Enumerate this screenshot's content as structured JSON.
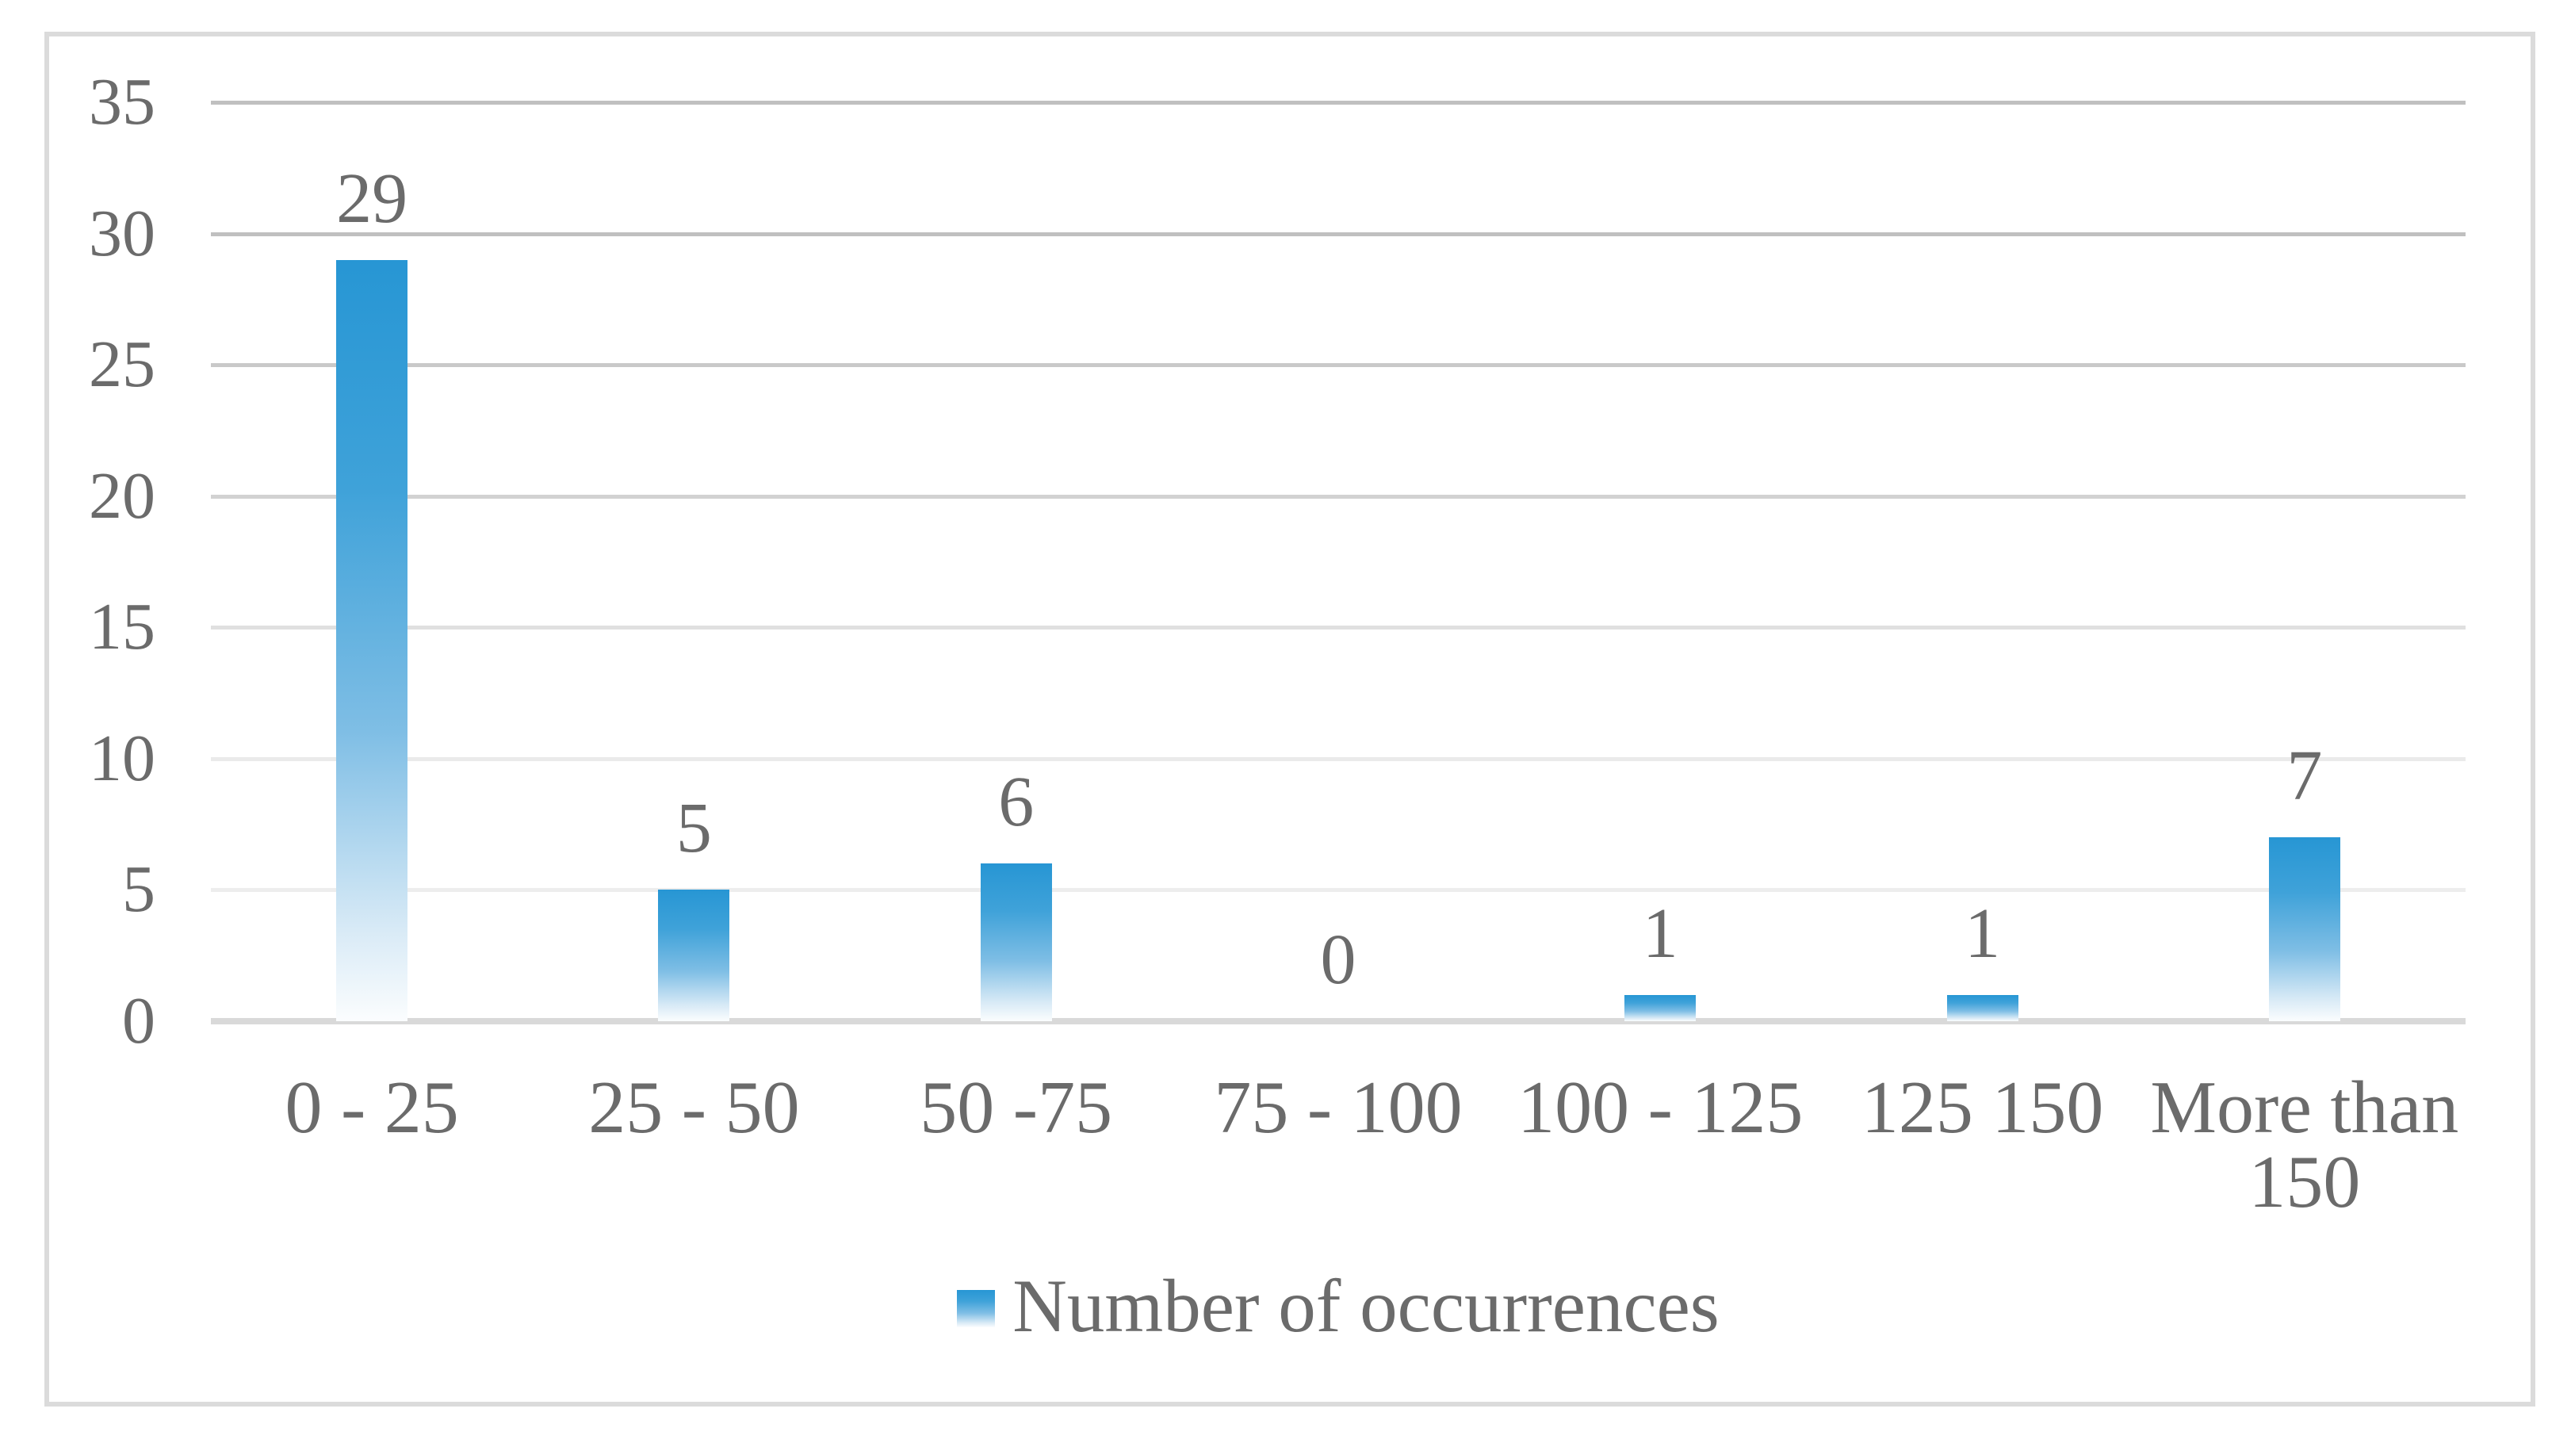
{
  "chart_data": {
    "type": "bar",
    "title": "",
    "series_name": "Number of occurrences",
    "categories": [
      "0 - 25",
      "25 - 50",
      "50 -75",
      "75 - 100",
      "100 - 125",
      "125 150",
      "More than 150"
    ],
    "values": [
      29,
      5,
      6,
      0,
      1,
      1,
      7
    ],
    "data_labels": [
      "29",
      "5",
      "6",
      "0",
      "1",
      "1",
      "7"
    ],
    "xlabel": "",
    "ylabel": "",
    "ylim": [
      0,
      35
    ],
    "ytick_step": 5,
    "ytick_labels_top_to_bottom": [
      "35",
      "30",
      "25",
      "20",
      "15",
      "10",
      "5",
      "0"
    ],
    "grid": true,
    "legend_position": "bottom",
    "colors": {
      "bar_gradient_top": "#2796d4",
      "bar_gradient_mid1": "#3fa2d9",
      "bar_gradient_mid2": "#7fbee5",
      "bar_gradient_mid3": "#d8eaf6",
      "bar_gradient_bottom": "#fbfdfe",
      "text": "#6b6b6b",
      "axis_baseline": "#d9d9d9",
      "frame_border": "#dbdbdb",
      "gridline_colors_top_to_bottom": [
        "#c0c0c0",
        "#c0c0c0",
        "#c9c9c9",
        "#d2d2d2",
        "#e0e0e0",
        "#eaeaea",
        "#ededed"
      ]
    }
  }
}
